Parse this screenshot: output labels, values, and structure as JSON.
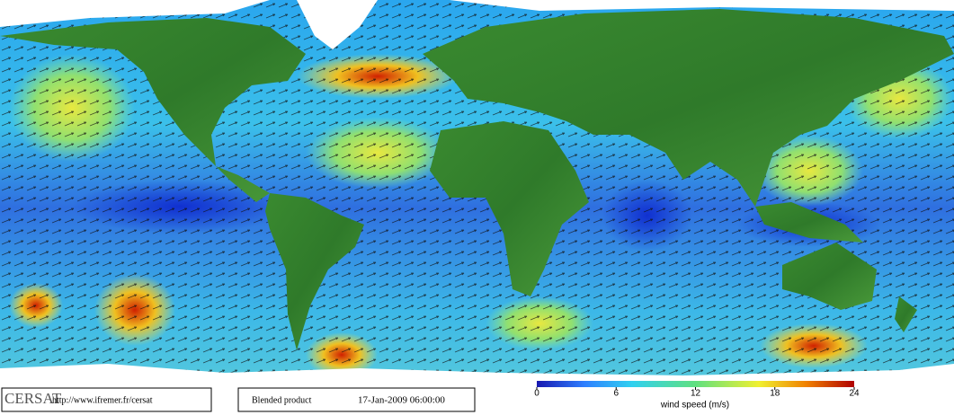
{
  "logo": "CERSAT",
  "url": "http://www.ifremer.fr/cersat",
  "product": "Blended product",
  "date": "17-Jan-2009 06:00:00",
  "colorbar": {
    "label": "wind speed (m/s)",
    "range": [
      0,
      24
    ],
    "ticks": [
      0,
      6,
      12,
      18,
      24
    ]
  }
}
